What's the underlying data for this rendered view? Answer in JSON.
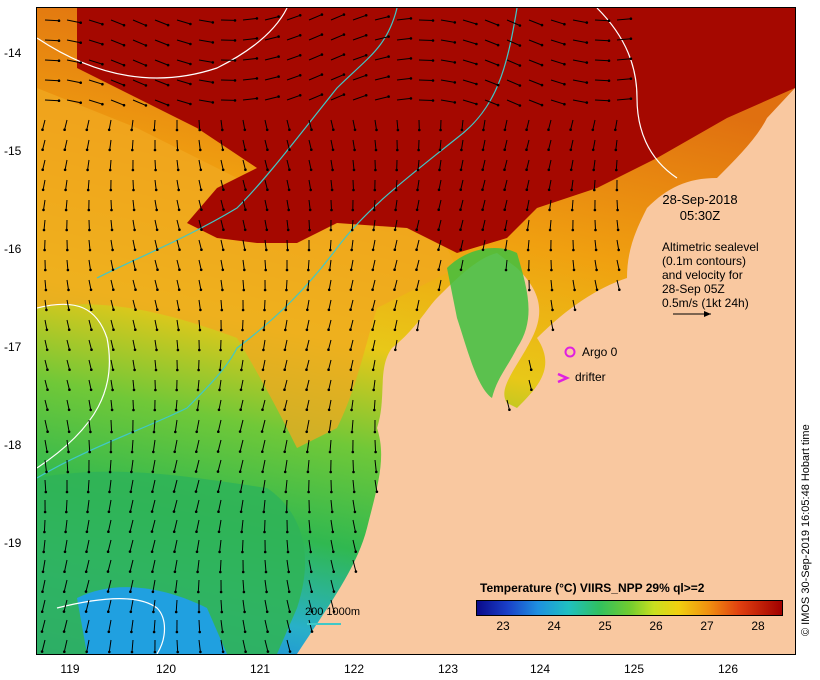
{
  "map": {
    "y_ticks": [
      "-14",
      "-15",
      "-16",
      "-17",
      "-18",
      "-19"
    ],
    "x_ticks": [
      "119",
      "120",
      "121",
      "122",
      "123",
      "124",
      "125",
      "126"
    ],
    "date_line1": "28-Sep-2018",
    "date_line2": "05:30Z",
    "altimetry_lines": [
      "Altimetric sealevel",
      "(0.1m contours)",
      "and velocity for",
      "28-Sep 05Z",
      "0.5m/s (1kt 24h)"
    ],
    "argo_label": "Argo 0",
    "drifter_label": "drifter",
    "scale_label": "200  1000m",
    "credit": "© IMOS 30-Sep-2019 16:05:48 Hobart time",
    "colorbar": {
      "title": "Temperature (°C) VIIRS_NPP 29% ql>=2",
      "labels": [
        "23",
        "24",
        "25",
        "26",
        "27",
        "28"
      ]
    },
    "colors": {
      "land": "#f9c8a0",
      "argo_marker": "#e020e0",
      "drifter_marker": "#e020e0",
      "bathymetry_contour": "#40c8c8",
      "sealevel_contour": "#ffffff"
    }
  }
}
